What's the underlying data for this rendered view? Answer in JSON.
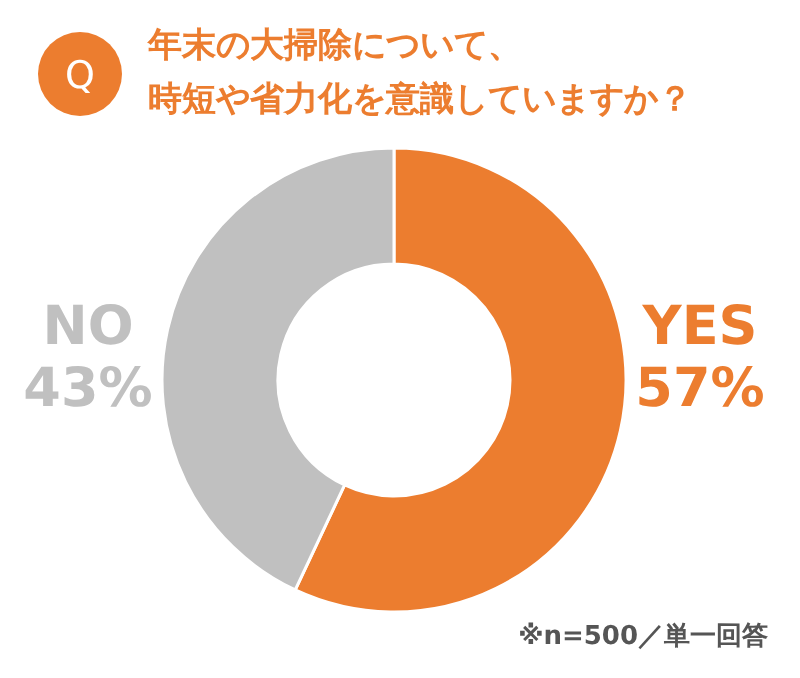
{
  "chart_data": {
    "type": "donut",
    "title": "年末の大掃除について、",
    "subtitle": "時短や省力化を意識していますか？",
    "categories": [
      "YES",
      "NO"
    ],
    "values": [
      57,
      43
    ],
    "colors": [
      "#ec7d2f",
      "#c0c0c0"
    ],
    "value_labels": [
      "57%",
      "43%"
    ],
    "annotations": [
      "Q",
      "※n=500／単一回答"
    ]
  }
}
